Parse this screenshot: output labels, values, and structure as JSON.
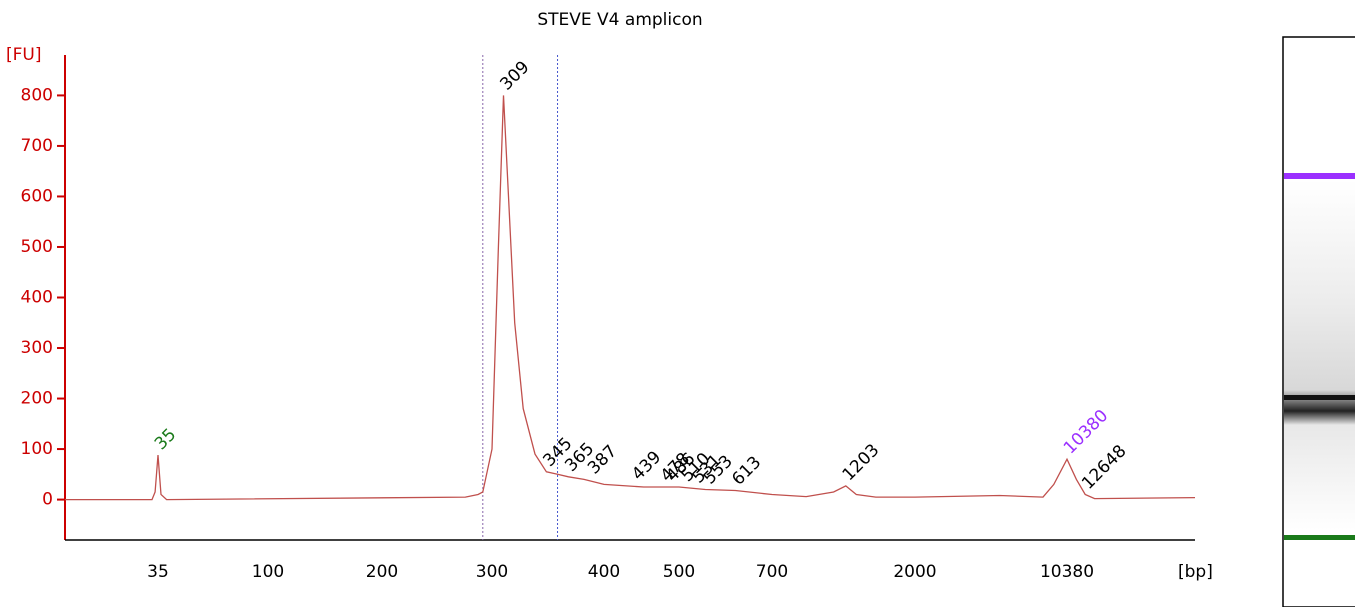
{
  "chart_data": {
    "type": "line",
    "title": "STEVE V4 amplicon",
    "y_label": "[FU]",
    "x_label": "[bp]",
    "xlim": [
      14,
      41600
    ],
    "ylim": [
      -80,
      880
    ],
    "yticks": [
      0,
      100,
      200,
      300,
      400,
      500,
      600,
      700,
      800
    ],
    "xticks": [
      35,
      100,
      200,
      300,
      400,
      500,
      700,
      2000,
      10380
    ],
    "color": "#c0504d",
    "x": [
      14,
      33,
      34,
      35,
      36,
      38,
      272,
      285,
      290,
      300,
      305,
      309,
      313,
      318,
      325,
      335,
      345,
      355,
      365,
      380,
      400,
      450,
      500,
      550,
      613,
      700,
      900,
      1100,
      1203,
      1300,
      1500,
      2000,
      5000,
      8000,
      9000,
      10380,
      11500,
      12648,
      14000,
      41600
    ],
    "values": [
      0,
      0,
      15,
      88,
      10,
      0,
      5,
      10,
      15,
      100,
      500,
      800,
      600,
      350,
      180,
      90,
      55,
      50,
      45,
      40,
      30,
      25,
      25,
      20,
      18,
      10,
      6,
      15,
      27,
      10,
      5,
      5,
      8,
      5,
      30,
      80,
      40,
      10,
      2,
      4
    ],
    "region": [
      290,
      355
    ],
    "peaks": {
      "bp": [
        35,
        309,
        345,
        365,
        387,
        439,
        478,
        486,
        510,
        531,
        553,
        613,
        1203,
        10380,
        12648
      ],
      "fu": [
        88,
        800,
        55,
        45,
        40,
        28,
        25,
        25,
        25,
        22,
        20,
        18,
        27,
        80,
        10
      ],
      "colors": [
        "#1a7a1a",
        "#000000",
        "#000000",
        "#000000",
        "#000000",
        "#000000",
        "#000000",
        "#000000",
        "#000000",
        "#000000",
        "#000000",
        "#000000",
        "#000000",
        "#9b30ff",
        "#000000"
      ]
    }
  }
}
